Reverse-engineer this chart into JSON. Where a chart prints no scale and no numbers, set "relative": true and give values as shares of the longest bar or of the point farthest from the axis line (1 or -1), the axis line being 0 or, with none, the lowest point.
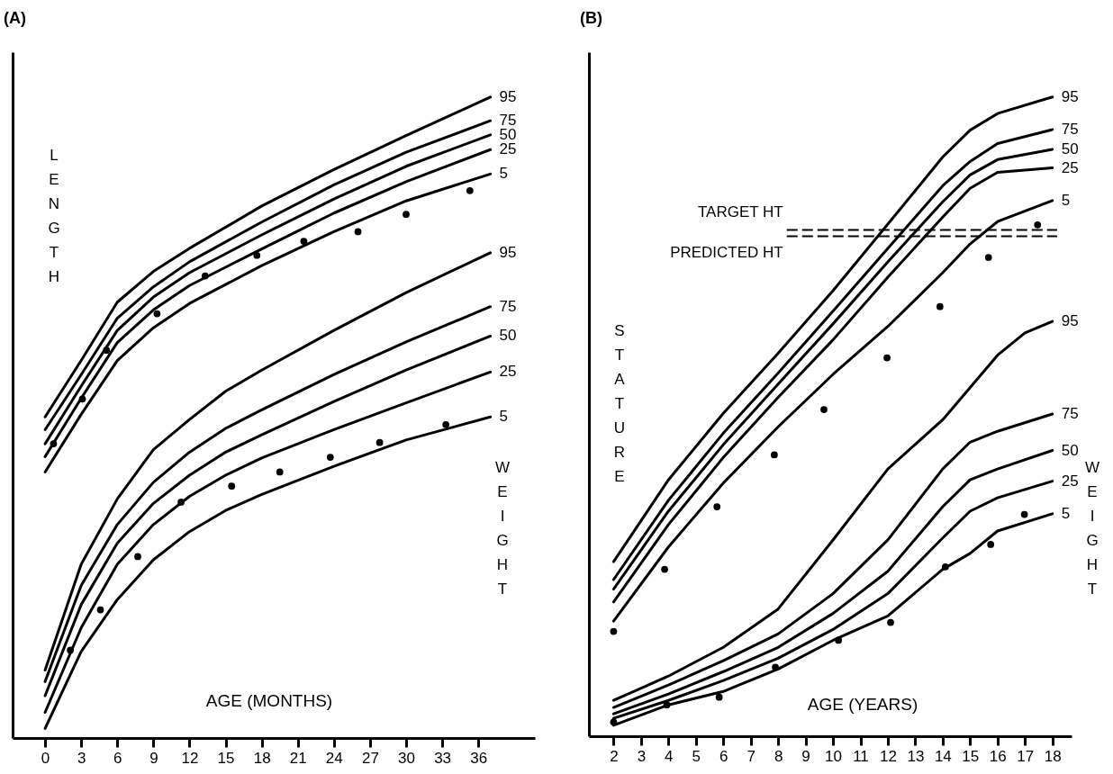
{
  "chart_data": [
    {
      "type": "line",
      "title": "(A)",
      "xlabel": "AGE (MONTHS)",
      "relative": true,
      "xlim": [
        -2.7,
        40.7
      ],
      "xticks": [
        0,
        3,
        6,
        9,
        12,
        15,
        18,
        21,
        24,
        27,
        30,
        33,
        36
      ],
      "tick_labels": "x",
      "grid": false,
      "annotations": [
        "LENGTH",
        "WEIGHT"
      ],
      "series": [
        {
          "name": "95",
          "color": "#000000",
          "x": [
            0,
            3,
            6,
            9,
            12,
            18,
            24,
            30,
            37
          ],
          "values": [
            0.501,
            0.589,
            0.68,
            0.728,
            0.764,
            0.83,
            0.887,
            0.94,
            1.0
          ]
        },
        {
          "name": "75",
          "color": "#000000",
          "x": [
            0,
            3,
            6,
            9,
            12,
            18,
            24,
            30,
            37
          ],
          "values": [
            0.481,
            0.567,
            0.655,
            0.704,
            0.743,
            0.805,
            0.863,
            0.914,
            0.963
          ]
        },
        {
          "name": "50",
          "color": "#000000",
          "x": [
            0,
            3,
            6,
            9,
            12,
            18,
            24,
            30,
            37
          ],
          "values": [
            0.459,
            0.549,
            0.636,
            0.688,
            0.726,
            0.785,
            0.841,
            0.892,
            0.941
          ]
        },
        {
          "name": "25",
          "color": "#000000",
          "x": [
            0,
            3,
            6,
            9,
            12,
            18,
            24,
            30,
            37
          ],
          "values": [
            0.439,
            0.53,
            0.617,
            0.668,
            0.706,
            0.763,
            0.819,
            0.868,
            0.918
          ]
        },
        {
          "name": "5",
          "color": "#000000",
          "x": [
            0,
            3,
            6,
            9,
            12,
            18,
            24,
            30,
            37
          ],
          "values": [
            0.415,
            0.505,
            0.589,
            0.64,
            0.678,
            0.737,
            0.79,
            0.838,
            0.88
          ]
        },
        {
          "type": "scatter",
          "marker": "circle",
          "color": "#000000",
          "x": [
            0.7,
            3.1,
            5.1,
            9.3,
            13.3,
            17.6,
            21.5,
            26,
            30,
            35.3
          ],
          "values": [
            0.459,
            0.529,
            0.605,
            0.662,
            0.721,
            0.753,
            0.775,
            0.79,
            0.817,
            0.854
          ]
        },
        {
          "name": "95",
          "color": "#000000",
          "x": [
            0,
            3,
            6,
            9,
            12,
            15,
            18,
            24,
            30,
            37
          ],
          "values": [
            0.106,
            0.271,
            0.373,
            0.45,
            0.497,
            0.541,
            0.574,
            0.636,
            0.695,
            0.757
          ]
        },
        {
          "name": "75",
          "color": "#000000",
          "x": [
            0,
            3,
            6,
            9,
            12,
            15,
            18,
            24,
            30,
            37
          ],
          "values": [
            0.088,
            0.238,
            0.333,
            0.399,
            0.446,
            0.483,
            0.512,
            0.567,
            0.618,
            0.673
          ]
        },
        {
          "name": "50",
          "color": "#000000",
          "x": [
            0,
            3,
            6,
            9,
            12,
            15,
            18,
            24,
            30,
            37
          ],
          "values": [
            0.066,
            0.208,
            0.304,
            0.366,
            0.41,
            0.446,
            0.473,
            0.525,
            0.574,
            0.627
          ]
        },
        {
          "name": "25",
          "color": "#000000",
          "x": [
            0,
            3,
            6,
            9,
            12,
            15,
            18,
            24,
            30,
            37
          ],
          "values": [
            0.04,
            0.172,
            0.271,
            0.333,
            0.377,
            0.41,
            0.437,
            0.481,
            0.523,
            0.571
          ]
        },
        {
          "name": "5",
          "color": "#000000",
          "x": [
            0,
            3,
            6,
            9,
            12,
            15,
            18,
            24,
            30,
            37
          ],
          "values": [
            0.015,
            0.135,
            0.216,
            0.278,
            0.322,
            0.355,
            0.38,
            0.424,
            0.465,
            0.501
          ]
        },
        {
          "type": "scatter",
          "marker": "circle",
          "color": "#000000",
          "x": [
            2.1,
            4.6,
            7.7,
            11.3,
            15.5,
            19.5,
            23.7,
            27.8,
            33.3
          ],
          "values": [
            0.137,
            0.2,
            0.283,
            0.368,
            0.393,
            0.415,
            0.438,
            0.461,
            0.489
          ]
        }
      ]
    },
    {
      "type": "line",
      "title": "(B)",
      "xlabel": "AGE (YEARS)",
      "relative": true,
      "xlim": [
        1.1,
        18.7
      ],
      "xticks": [
        2,
        3,
        4,
        5,
        6,
        7,
        8,
        9,
        10,
        11,
        12,
        13,
        14,
        15,
        16,
        17,
        18
      ],
      "tick_labels": "x",
      "grid": false,
      "annotations": [
        "STATURE",
        "WEIGHT"
      ],
      "ref_lines": [
        {
          "axis": "y",
          "value": 0.792,
          "label": "TARGET HT",
          "line_style": "dashed"
        },
        {
          "axis": "y",
          "value": 0.782,
          "label": "PREDICTED HT",
          "line_style": "dashed"
        }
      ],
      "series": [
        {
          "name": "95",
          "color": "#000000",
          "x": [
            2,
            4,
            6,
            8,
            10,
            12,
            14,
            15,
            16,
            18
          ],
          "values": [
            0.273,
            0.401,
            0.505,
            0.599,
            0.697,
            0.801,
            0.906,
            0.948,
            0.974,
            1.0
          ]
        },
        {
          "name": "75",
          "color": "#000000",
          "x": [
            2,
            4,
            6,
            8,
            10,
            12,
            14,
            15,
            16,
            18
          ],
          "values": [
            0.245,
            0.369,
            0.474,
            0.568,
            0.665,
            0.763,
            0.861,
            0.899,
            0.927,
            0.949
          ]
        },
        {
          "name": "50",
          "color": "#000000",
          "x": [
            2,
            4,
            6,
            8,
            10,
            12,
            14,
            15,
            16,
            18
          ],
          "values": [
            0.23,
            0.352,
            0.456,
            0.551,
            0.645,
            0.742,
            0.836,
            0.878,
            0.902,
            0.918
          ]
        },
        {
          "name": "25",
          "color": "#000000",
          "x": [
            2,
            4,
            6,
            8,
            10,
            12,
            14,
            15,
            16,
            18
          ],
          "values": [
            0.21,
            0.331,
            0.436,
            0.53,
            0.62,
            0.718,
            0.812,
            0.857,
            0.882,
            0.889
          ]
        },
        {
          "name": "5",
          "color": "#000000",
          "x": [
            2,
            4,
            6,
            8,
            10,
            12,
            14,
            15,
            16,
            18
          ],
          "values": [
            0.18,
            0.296,
            0.396,
            0.484,
            0.566,
            0.641,
            0.725,
            0.77,
            0.805,
            0.838
          ]
        },
        {
          "type": "scatter",
          "marker": "circle",
          "color": "#000000",
          "x": [
            2,
            3.86,
            5.77,
            7.86,
            9.67,
            11.97,
            13.9,
            15.67,
            17.46
          ],
          "values": [
            0.164,
            0.261,
            0.359,
            0.44,
            0.511,
            0.592,
            0.672,
            0.749,
            0.8
          ]
        },
        {
          "name": "95",
          "color": "#000000",
          "x": [
            2,
            4,
            6,
            8,
            10,
            12,
            14,
            16,
            17,
            18
          ],
          "values": [
            0.056,
            0.094,
            0.139,
            0.199,
            0.307,
            0.418,
            0.495,
            0.596,
            0.631,
            0.649
          ]
        },
        {
          "name": "75",
          "color": "#000000",
          "x": [
            2,
            4,
            6,
            8,
            10,
            12,
            14,
            15,
            16,
            18
          ],
          "values": [
            0.045,
            0.08,
            0.118,
            0.16,
            0.223,
            0.307,
            0.418,
            0.46,
            0.477,
            0.504
          ]
        },
        {
          "name": "50",
          "color": "#000000",
          "x": [
            2,
            4,
            6,
            8,
            10,
            12,
            14,
            15,
            16,
            18
          ],
          "values": [
            0.035,
            0.066,
            0.101,
            0.139,
            0.192,
            0.258,
            0.359,
            0.401,
            0.418,
            0.447
          ]
        },
        {
          "name": "25",
          "color": "#000000",
          "x": [
            2,
            4,
            6,
            8,
            10,
            12,
            14,
            15,
            16,
            18
          ],
          "values": [
            0.028,
            0.056,
            0.087,
            0.122,
            0.167,
            0.223,
            0.31,
            0.352,
            0.373,
            0.399
          ]
        },
        {
          "name": "5",
          "color": "#000000",
          "x": [
            2,
            4,
            6,
            8,
            10,
            12,
            14,
            15,
            16,
            18
          ],
          "values": [
            0.017,
            0.049,
            0.07,
            0.105,
            0.15,
            0.188,
            0.261,
            0.286,
            0.321,
            0.348
          ]
        },
        {
          "type": "scatter",
          "marker": "circle",
          "color": "#000000",
          "x": [
            2,
            3.94,
            5.85,
            7.9,
            10.2,
            12.1,
            14.1,
            15.75,
            16.98
          ],
          "values": [
            0.022,
            0.049,
            0.061,
            0.108,
            0.15,
            0.178,
            0.265,
            0.3,
            0.347
          ]
        }
      ]
    }
  ]
}
